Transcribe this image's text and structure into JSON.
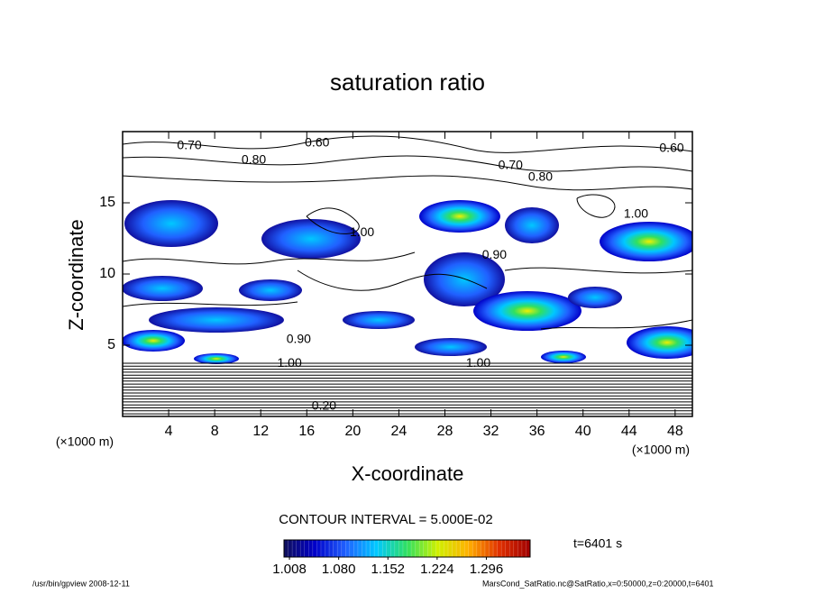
{
  "chart_data": {
    "type": "contour",
    "title": "saturation ratio",
    "x_label": "X-coordinate",
    "y_label": "Z-coordinate",
    "x_unit": "(×1000 m)",
    "y_unit": "(×1000 m)",
    "xlim": [
      0,
      49.5
    ],
    "ylim": [
      0,
      20
    ],
    "xticks": [
      4,
      8,
      12,
      16,
      20,
      24,
      28,
      32,
      36,
      40,
      44,
      48
    ],
    "yticks": [
      5,
      10,
      15
    ],
    "contour_labels": [
      {
        "x": 5.8,
        "y": 19.0,
        "value": 0.7,
        "label": "0.70"
      },
      {
        "x": 16.9,
        "y": 19.2,
        "value": 0.6,
        "label": "0.60"
      },
      {
        "x": 47.7,
        "y": 18.8,
        "value": 0.6,
        "label": "0.60"
      },
      {
        "x": 33.7,
        "y": 17.6,
        "value": 0.7,
        "label": "0.70"
      },
      {
        "x": 36.3,
        "y": 16.8,
        "value": 0.8,
        "label": "0.80"
      },
      {
        "x": 11.4,
        "y": 18.0,
        "value": 0.8,
        "label": "0.80"
      },
      {
        "x": 20.8,
        "y": 12.9,
        "value": 1.0,
        "label": "1.00"
      },
      {
        "x": 44.6,
        "y": 14.2,
        "value": 1.0,
        "label": "1.00"
      },
      {
        "x": 32.3,
        "y": 11.3,
        "value": 0.9,
        "label": "0.90"
      },
      {
        "x": 15.3,
        "y": 5.4,
        "value": 0.9,
        "label": "0.90"
      },
      {
        "x": 14.5,
        "y": 3.7,
        "value": 1.0,
        "label": "1.00"
      },
      {
        "x": 30.9,
        "y": 3.7,
        "value": 1.0,
        "label": "1.00"
      },
      {
        "x": 17.5,
        "y": 0.7,
        "value": 0.2,
        "label": "0.20"
      }
    ],
    "contour_interval": "CONTOUR INTERVAL = 5.000E-02",
    "colormap": [
      "#10105a",
      "#0000c8",
      "#2060ff",
      "#00c8ff",
      "#30e060",
      "#d0f000",
      "#ffb000",
      "#e03000",
      "#a00000"
    ],
    "clim": [
      1.0,
      1.36
    ],
    "colorbar_ticks": [
      {
        "value": 1.008,
        "label": "1.008"
      },
      {
        "value": 1.08,
        "label": "1.080"
      },
      {
        "value": 1.152,
        "label": "1.152"
      },
      {
        "value": 1.224,
        "label": "1.224"
      },
      {
        "value": 1.296,
        "label": "1.296"
      }
    ],
    "time_label": "t=6401 s",
    "footer_left": "/usr/bin/gpview   2008-12-11",
    "footer_right": "MarsCond_SatRatio.nc@SatRatio,x=0:50000,z=0:20000,t=6401"
  }
}
